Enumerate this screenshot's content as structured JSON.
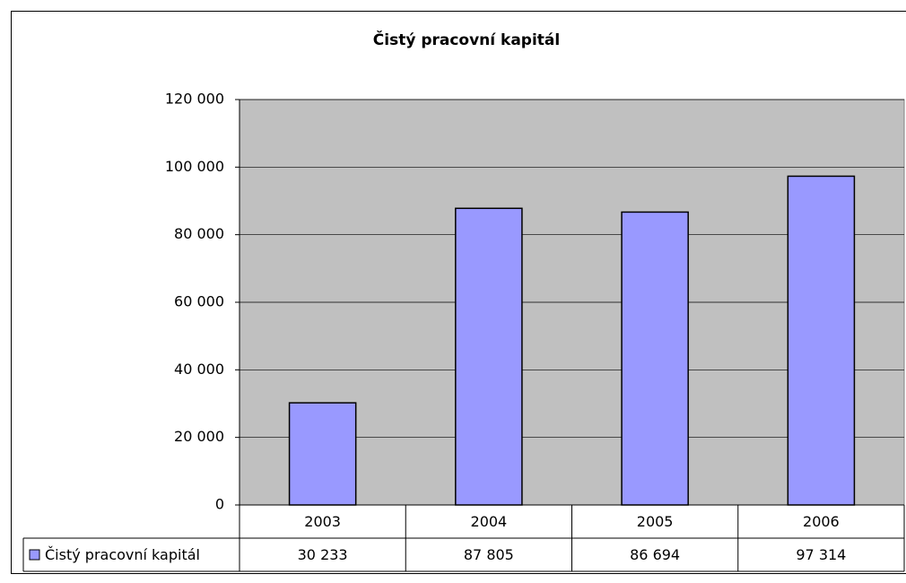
{
  "chart_data": {
    "type": "bar",
    "title": "Čistý pracovní kapitál",
    "categories": [
      "2003",
      "2004",
      "2005",
      "2006"
    ],
    "series": [
      {
        "name": "Čistý pracovní kapitál",
        "color": "#9999ff",
        "values": [
          30233,
          87805,
          86694,
          97314
        ],
        "value_labels": [
          "30 233",
          "87 805",
          "86 694",
          "97 314"
        ]
      }
    ],
    "ylim": [
      0,
      120000
    ],
    "yticks": [
      {
        "value": 0,
        "label": "0"
      },
      {
        "value": 20000,
        "label": "20 000"
      },
      {
        "value": 40000,
        "label": "40 000"
      },
      {
        "value": 60000,
        "label": "60 000"
      },
      {
        "value": 80000,
        "label": "80 000"
      },
      {
        "value": 100000,
        "label": "100 000"
      },
      {
        "value": 120000,
        "label": "120 000"
      }
    ],
    "grid": true,
    "plot_background": "#c0c0c0"
  }
}
